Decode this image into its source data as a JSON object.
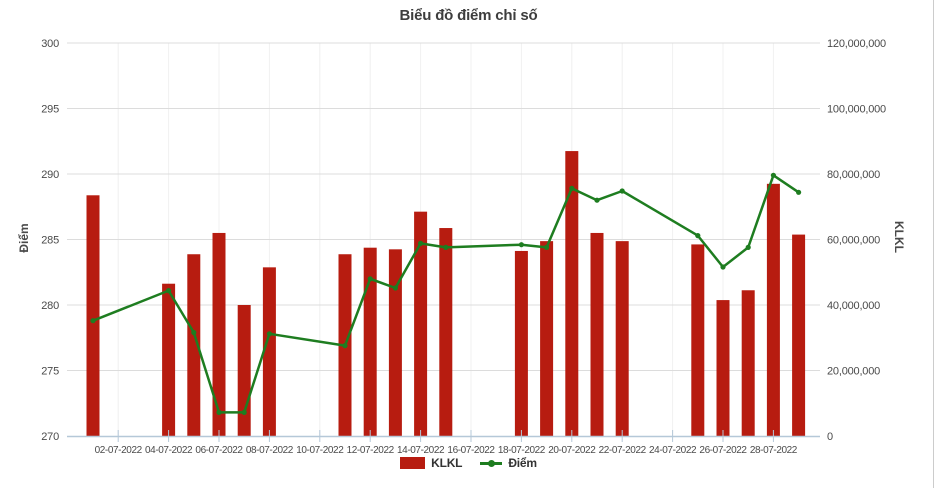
{
  "chart_data": {
    "type": "combo",
    "title": "Biểu đồ điểm chỉ số",
    "categories": [
      "01-07-2022",
      "04-07-2022",
      "05-07-2022",
      "06-07-2022",
      "07-07-2022",
      "08-07-2022",
      "11-07-2022",
      "12-07-2022",
      "13-07-2022",
      "14-07-2022",
      "15-07-2022",
      "18-07-2022",
      "19-07-2022",
      "20-07-2022",
      "21-07-2022",
      "22-07-2022",
      "25-07-2022",
      "26-07-2022",
      "27-07-2022",
      "28-07-2022",
      "29-07-2022"
    ],
    "series": [
      {
        "name": "KLKL",
        "type": "bar",
        "y_axis": "right",
        "color": "#b71c10",
        "values": [
          73500000,
          46500000,
          55500000,
          62000000,
          40000000,
          51500000,
          55500000,
          57500000,
          57000000,
          68500000,
          63500000,
          56500000,
          59500000,
          87000000,
          62000000,
          59500000,
          58500000,
          41500000,
          44500000,
          77000000,
          61500000
        ]
      },
      {
        "name": "Điểm",
        "type": "line",
        "y_axis": "left",
        "color": "#1e7d20",
        "values": [
          278.8,
          281.1,
          277.9,
          271.8,
          271.8,
          277.8,
          276.9,
          282.0,
          281.3,
          284.7,
          284.4,
          284.6,
          284.4,
          288.9,
          288.0,
          288.7,
          285.3,
          282.9,
          284.4,
          289.9,
          288.6
        ]
      }
    ],
    "left_axis": {
      "label": "Điểm",
      "min": 270,
      "max": 300,
      "tick_interval": 5,
      "ticks": [
        "270",
        "275",
        "280",
        "285",
        "290",
        "295",
        "300"
      ]
    },
    "right_axis": {
      "label": "KLKL",
      "min": 0,
      "max": 120000000,
      "tick_interval": 20000000,
      "ticks": [
        "0",
        "20,000,000",
        "40,000,000",
        "60,000,000",
        "80,000,000",
        "100,000,000",
        "120,000,000"
      ]
    },
    "x_axis": {
      "tick_labels": [
        "02-07-2022",
        "04-07-2022",
        "06-07-2022",
        "08-07-2022",
        "10-07-2022",
        "12-07-2022",
        "14-07-2022",
        "16-07-2022",
        "18-07-2022",
        "20-07-2022",
        "22-07-2022",
        "24-07-2022",
        "26-07-2022",
        "28-07-2022"
      ]
    },
    "legend_position": "bottom-center",
    "grid": true
  },
  "legend": {
    "volume_label": "KLKL",
    "points_label": "Điểm"
  },
  "colors": {
    "bar": "#b71c10",
    "line": "#1e7d20",
    "grid": "#dcdcdc",
    "minor_grid": "#f0f0f0",
    "axis_line": "#b5c8d8",
    "tick_text": "#4a4a4a",
    "title_text": "#3d3d3d",
    "panel_border": "#cccccc",
    "background": "#ffffff"
  }
}
